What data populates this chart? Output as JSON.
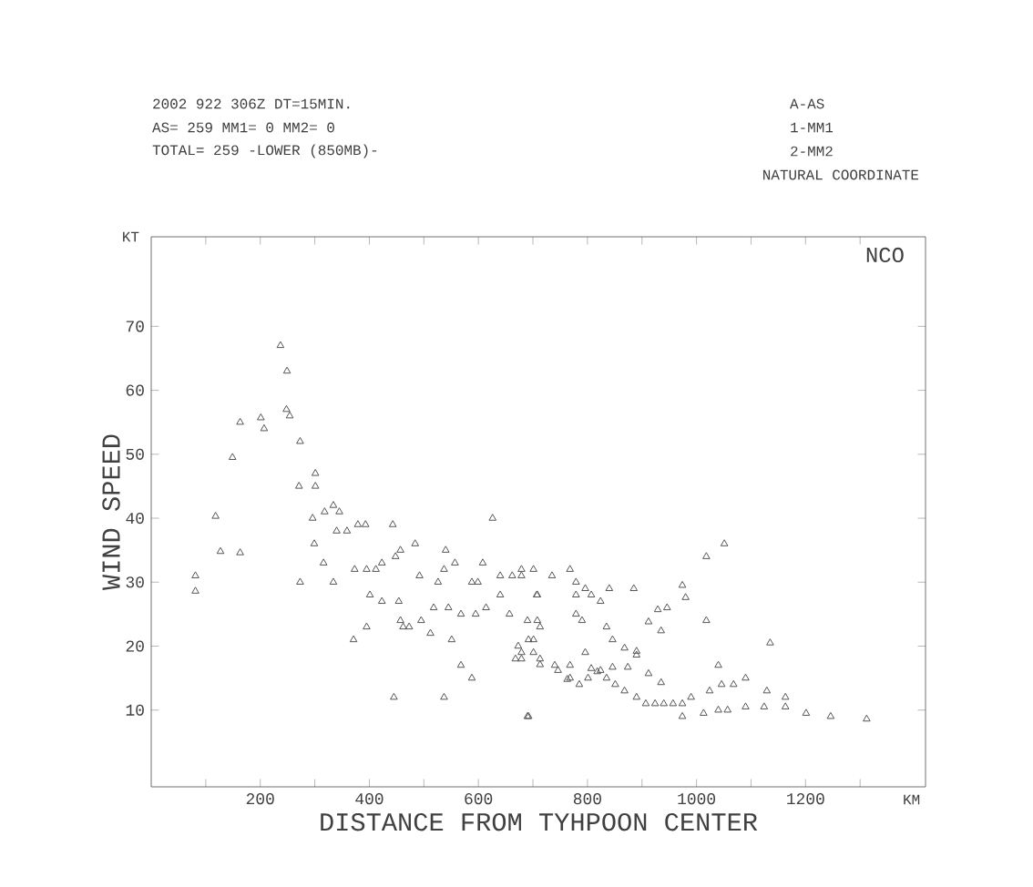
{
  "chart_data": {
    "type": "scatter",
    "xlabel": "DISTANCE FROM TYHPOON CENTER",
    "ylabel": "WIND SPEED",
    "annotations": [
      "2002  922  306Z  DT=15MIN.",
      "AS= 259   MM1= 0   MM2= 0",
      "TOTAL= 259   -LOWER (850MB)-",
      "A-AS",
      "1-MM1",
      "2-MM2",
      "NATURAL COORDINATE",
      "NCO",
      "KT",
      "KM"
    ],
    "xlim": [
      0,
      1420
    ],
    "ylim": [
      -2,
      84
    ],
    "xticks": [
      {
        "value": 100,
        "label": null
      },
      200,
      {
        "value": 300,
        "label": null
      },
      400,
      {
        "value": 500,
        "label": null
      },
      600,
      {
        "value": 700,
        "label": null
      },
      800,
      {
        "value": 900,
        "label": null
      },
      1000,
      {
        "value": 1100,
        "label": null
      },
      1200,
      {
        "value": 1300,
        "label": null
      }
    ],
    "yticks": [
      10,
      20,
      30,
      40,
      50,
      60,
      70
    ],
    "marker": "triangle",
    "series": [
      {
        "color": "#555555",
        "x": [
          81,
          81,
          118,
          127,
          163,
          149,
          163,
          201,
          207,
          237,
          249,
          248,
          254,
          273,
          301,
          301,
          271,
          296,
          318,
          334,
          345,
          299,
          340,
          359,
          379,
          393,
          316,
          334,
          273,
          373,
          395,
          412,
          443,
          401,
          423,
          454,
          371,
          395,
          423,
          448,
          457,
          484,
          457,
          462,
          473,
          445,
          495,
          512,
          518,
          492,
          526,
          537,
          557,
          540,
          545,
          537,
          551,
          568,
          588,
          568,
          595,
          614,
          588,
          599,
          608,
          626,
          640,
          640,
          662,
          679,
          668,
          679,
          701,
          692,
          673,
          692,
          708,
          708,
          679,
          701,
          735,
          768,
          779,
          707,
          657,
          690,
          713,
          779,
          790,
          779,
          796,
          807,
          824,
          840,
          885,
          701,
          679,
          713,
          740,
          768,
          690,
          768,
          785,
          801,
          818,
          835,
          851,
          868,
          890,
          907,
          924,
          940,
          957,
          974,
          990,
          974,
          1013,
          1040,
          1057,
          1024,
          1046,
          1068,
          1090,
          1040,
          1090,
          1124,
          1163,
          1201,
          1246,
          1312,
          1129,
          1163,
          1135,
          1051,
          1018,
          974,
          980,
          929,
          946,
          912,
          935,
          1018,
          835,
          846,
          868,
          890,
          846,
          824,
          807,
          796,
          874,
          890,
          912,
          935,
          713,
          746,
          763
        ],
        "values": [
          31,
          28.6,
          40.3,
          34.8,
          34.6,
          49.5,
          55,
          55.7,
          54,
          67,
          63,
          57,
          56,
          52,
          47,
          45,
          45,
          40,
          41,
          42,
          41,
          36,
          38,
          38,
          39,
          39,
          33,
          30,
          30,
          32,
          32,
          32,
          39,
          28,
          27,
          27,
          21,
          23,
          33,
          34,
          35,
          36,
          24,
          23,
          23,
          12,
          24,
          22,
          26,
          31,
          30,
          32,
          33,
          35,
          26,
          12,
          21,
          17,
          15,
          25,
          25,
          26,
          30,
          30,
          33,
          40,
          28,
          31,
          31,
          32,
          18,
          19,
          19,
          9,
          20,
          21,
          28,
          24,
          31,
          32,
          31,
          32,
          30,
          28,
          25,
          24,
          23,
          25,
          24,
          28,
          29,
          28,
          27,
          29,
          29,
          21,
          18,
          18,
          17,
          17,
          9,
          15,
          14,
          15,
          16,
          15,
          14,
          13,
          12,
          11,
          11,
          11,
          11,
          11,
          12,
          9,
          9.5,
          10,
          10,
          13,
          14,
          14,
          15,
          17,
          10.5,
          10.5,
          10.5,
          9.5,
          9,
          8.6,
          13,
          12,
          20.5,
          36,
          34,
          29.5,
          27.6,
          25.7,
          26,
          23.8,
          22.4,
          24,
          23,
          21,
          19.7,
          19.2,
          16.7,
          16.2,
          16.5,
          19,
          16.7,
          18.6,
          15.7,
          14.3,
          17.1,
          16.2,
          14.8
        ]
      }
    ]
  }
}
